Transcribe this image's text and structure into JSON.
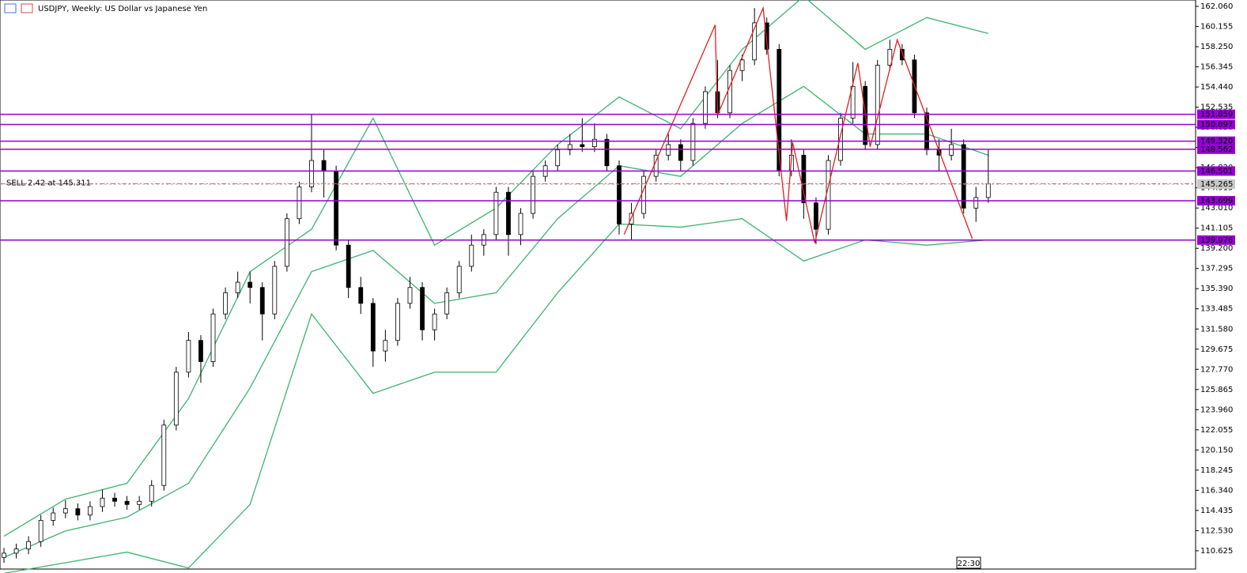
{
  "chart_data": {
    "type": "candlestick",
    "title": "USDJPY, Weekly:  US Dollar vs Japanese Yen",
    "candles": {
      "open": [
        110.0,
        110.4,
        110.8,
        111.5,
        113.5,
        114.2,
        114.6,
        114.0,
        114.8,
        115.6,
        115.3,
        115.0,
        115.3,
        116.8,
        122.5,
        127.5,
        130.5,
        128.5,
        133.0,
        135.0,
        136.0,
        135.5,
        133.0,
        137.5,
        142.0,
        145.0,
        147.5,
        146.5,
        139.5,
        135.5,
        134.0,
        129.5,
        130.5,
        134.0,
        135.5,
        131.5,
        133.0,
        135.0,
        137.5,
        139.5,
        140.5,
        144.5,
        140.5,
        142.5,
        146.0,
        147.0,
        148.5,
        149.0,
        148.8,
        149.5,
        147.0,
        141.5,
        142.5,
        146.0,
        148.0,
        149.0,
        147.5,
        151.0,
        154.0,
        152.0,
        156.0,
        157.0,
        160.5,
        158.0,
        146.5,
        148.0,
        143.5,
        141.0,
        147.5,
        151.5,
        154.5,
        149.0,
        156.5,
        158.0,
        157.0,
        152.0,
        148.5,
        148.0,
        149.0,
        143.0,
        144.0
      ],
      "high": [
        110.9,
        111.3,
        112.0,
        114.0,
        114.7,
        115.4,
        115.1,
        115.3,
        116.4,
        116.1,
        115.8,
        115.8,
        117.3,
        123.0,
        128.0,
        131.3,
        131.0,
        133.5,
        135.5,
        137.0,
        137.0,
        136.0,
        138.0,
        142.5,
        145.5,
        151.9,
        148.5,
        147.0,
        140.0,
        136.5,
        134.5,
        131.5,
        134.5,
        136.5,
        136.0,
        133.5,
        135.5,
        138.0,
        140.5,
        141.0,
        145.0,
        145.0,
        143.0,
        146.5,
        147.5,
        149.0,
        150.0,
        151.5,
        151.0,
        150.0,
        147.5,
        143.5,
        146.5,
        148.5,
        150.0,
        149.5,
        151.5,
        154.5,
        157.0,
        156.5,
        157.5,
        161.9,
        161.0,
        158.5,
        149.5,
        148.5,
        144.0,
        148.0,
        152.0,
        156.8,
        155.0,
        157.0,
        158.9,
        158.5,
        157.5,
        152.5,
        149.5,
        150.5,
        149.5,
        145.0,
        148.5
      ],
      "low": [
        109.5,
        109.9,
        110.3,
        111.0,
        113.0,
        113.7,
        113.5,
        113.5,
        114.3,
        114.8,
        114.5,
        114.5,
        114.8,
        116.3,
        122.0,
        127.0,
        126.5,
        128.0,
        132.5,
        134.5,
        134.0,
        130.5,
        132.5,
        137.0,
        141.5,
        144.5,
        144.0,
        139.0,
        134.5,
        133.0,
        128.0,
        128.5,
        130.0,
        133.5,
        130.5,
        130.5,
        132.5,
        134.5,
        137.0,
        138.5,
        140.0,
        138.5,
        139.5,
        142.0,
        145.5,
        146.5,
        148.0,
        148.3,
        148.3,
        146.5,
        140.5,
        140.0,
        142.0,
        145.5,
        147.5,
        146.5,
        147.0,
        150.5,
        151.5,
        151.5,
        155.0,
        156.5,
        157.5,
        146.0,
        146.0,
        142.0,
        139.6,
        140.5,
        147.0,
        151.0,
        148.5,
        148.5,
        156.0,
        156.5,
        151.5,
        148.0,
        146.5,
        147.5,
        142.5,
        141.7,
        143.5
      ],
      "close": [
        110.4,
        110.8,
        111.5,
        113.5,
        114.2,
        114.6,
        114.0,
        114.8,
        115.6,
        115.3,
        115.0,
        115.3,
        116.8,
        122.5,
        127.5,
        130.5,
        128.5,
        133.0,
        135.0,
        136.0,
        135.5,
        133.0,
        137.5,
        142.0,
        145.0,
        147.5,
        146.5,
        139.5,
        135.5,
        134.0,
        129.5,
        130.5,
        134.0,
        135.5,
        131.5,
        133.0,
        135.0,
        137.5,
        139.5,
        140.5,
        144.5,
        140.5,
        142.5,
        146.0,
        147.0,
        148.5,
        149.0,
        148.8,
        149.5,
        147.0,
        141.5,
        142.5,
        146.0,
        148.0,
        149.0,
        147.5,
        151.0,
        154.0,
        152.0,
        156.0,
        157.0,
        160.5,
        158.0,
        146.5,
        148.0,
        143.5,
        141.0,
        147.5,
        151.5,
        154.5,
        149.0,
        156.5,
        158.0,
        157.0,
        152.0,
        148.5,
        148.0,
        149.0,
        143.0,
        144.0,
        145.3
      ]
    },
    "bands": {
      "color": "#3cb371",
      "x": [
        0,
        5,
        10,
        15,
        20,
        25,
        30,
        35,
        40,
        45,
        50,
        55,
        60,
        65,
        70,
        75,
        80
      ],
      "upper": [
        112,
        115.5,
        117,
        125,
        137,
        141,
        151.5,
        139.5,
        143,
        149,
        153.5,
        150.5,
        158,
        163,
        158,
        161,
        159.5
      ],
      "middle": [
        110,
        112.5,
        113.8,
        117,
        126,
        137,
        139,
        134,
        135,
        142,
        147,
        146,
        151,
        154.5,
        150,
        150,
        148
      ],
      "lower": [
        108.5,
        109.5,
        110.5,
        109,
        115,
        133,
        125.5,
        127.5,
        127.5,
        135,
        141.5,
        141.2,
        142,
        138,
        140,
        139.5,
        140
      ]
    },
    "zigzag": {
      "color": "#e02020",
      "x": [
        50.4,
        57.8,
        58.0,
        61.7,
        63.6,
        64.1,
        65.9,
        69.4,
        70.4,
        72.6,
        78.7
      ],
      "values": [
        140.5,
        160.3,
        151.8,
        161.9,
        141.8,
        149.2,
        139.7,
        156.7,
        148.8,
        158.9,
        140.1
      ]
    },
    "ylim": [
      108.9,
      162.66
    ],
    "yticks": [
      {
        "value": 162.06,
        "label": "162.060"
      },
      {
        "value": 160.155,
        "label": "160.155"
      },
      {
        "value": 158.25,
        "label": "158.250"
      },
      {
        "value": 156.345,
        "label": "156.345"
      },
      {
        "value": 154.44,
        "label": "154.440"
      },
      {
        "value": 152.535,
        "label": "152.535"
      },
      {
        "value": 150.63,
        "label": "150.630"
      },
      {
        "value": 148.725,
        "label": "148.725"
      },
      {
        "value": 146.82,
        "label": "146.820"
      },
      {
        "value": 144.915,
        "label": "144.915"
      },
      {
        "value": 143.01,
        "label": "143.010"
      },
      {
        "value": 141.105,
        "label": "141.105"
      },
      {
        "value": 139.2,
        "label": "139.200"
      },
      {
        "value": 137.295,
        "label": "137.295"
      },
      {
        "value": 135.39,
        "label": "135.390"
      },
      {
        "value": 133.485,
        "label": "133.485"
      },
      {
        "value": 131.58,
        "label": "131.580"
      },
      {
        "value": 129.675,
        "label": "129.675"
      },
      {
        "value": 127.77,
        "label": "127.770"
      },
      {
        "value": 125.865,
        "label": "125.865"
      },
      {
        "value": 123.96,
        "label": "123.960"
      },
      {
        "value": 122.055,
        "label": "122.055"
      },
      {
        "value": 120.15,
        "label": "120.150"
      },
      {
        "value": 118.245,
        "label": "118.245"
      },
      {
        "value": 116.34,
        "label": "116.340"
      },
      {
        "value": 114.435,
        "label": "114.435"
      },
      {
        "value": 112.53,
        "label": "112.530"
      },
      {
        "value": 110.625,
        "label": "110.625"
      }
    ],
    "level_color": "#9400d3",
    "levels": [
      {
        "value": 151.859,
        "label": "151.859"
      },
      {
        "value": 150.897,
        "label": "150.897"
      },
      {
        "value": 149.32,
        "label": "149.320"
      },
      {
        "value": 148.562,
        "label": "148.562"
      },
      {
        "value": 146.501,
        "label": "146.501"
      },
      {
        "value": 143.699,
        "label": "143.699"
      },
      {
        "value": 139.976,
        "label": "139.976"
      }
    ],
    "price_line": {
      "value": 145.265,
      "label": "145.265"
    },
    "trade": {
      "value": 145.311,
      "label": "SELL 2.42 at 145.311"
    },
    "time_label": "22:30"
  }
}
